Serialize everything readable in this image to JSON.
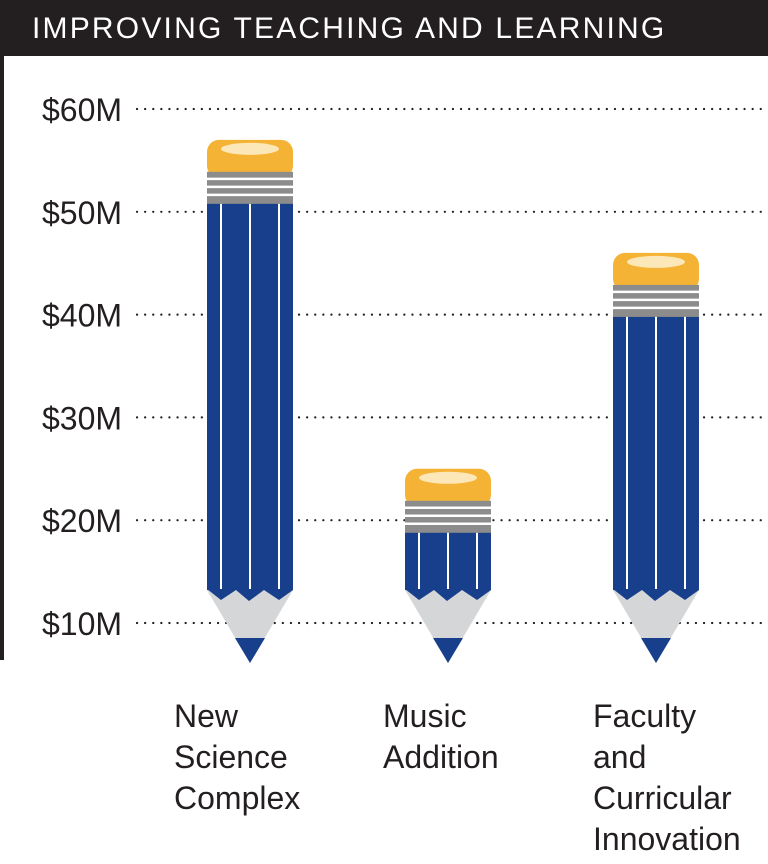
{
  "header": {
    "title": "IMPROVING TEACHING AND LEARNING"
  },
  "colors": {
    "banner": "#231f20",
    "pencil_body": "#173f8c",
    "pencil_stripe": "#ffffff",
    "eraser": "#f4b334",
    "eraser_highlight": "#fbe7b8",
    "ferrule": "#8c8c8c",
    "wood": "#d4d6d8",
    "lead": "#173f8c",
    "grid": "#231f20"
  },
  "chart_data": {
    "type": "bar",
    "title": "IMPROVING TEACHING AND LEARNING",
    "xlabel": "",
    "ylabel": "",
    "categories": [
      {
        "lines": [
          "New",
          "Science",
          "Complex"
        ]
      },
      {
        "lines": [
          "Music",
          "Addition"
        ]
      },
      {
        "lines": [
          "Faculty",
          "and",
          "Curricular",
          "Innovation"
        ]
      }
    ],
    "values": [
      57,
      25,
      46
    ],
    "y_ticks": [
      10,
      20,
      30,
      40,
      50,
      60
    ],
    "y_tick_labels": [
      "$10M",
      "$20M",
      "$30M",
      "$40M",
      "$50M",
      "$60M"
    ],
    "ylim": [
      6.5,
      60
    ],
    "grid": "dotted horizontal"
  }
}
